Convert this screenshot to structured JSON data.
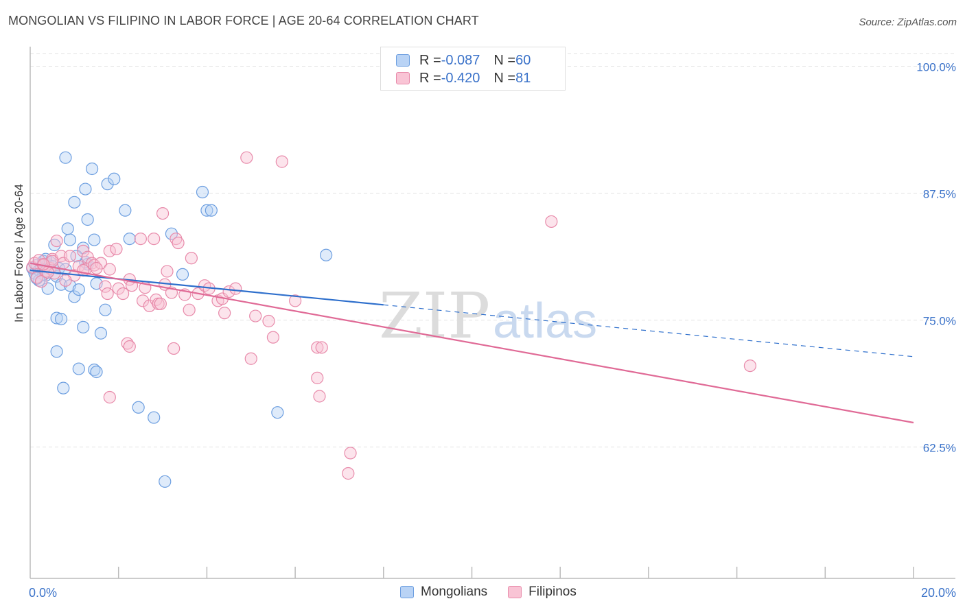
{
  "title": "MONGOLIAN VS FILIPINO IN LABOR FORCE | AGE 20-64 CORRELATION CHART",
  "source": "Source: ZipAtlas.com",
  "legend": {
    "rows": [
      {
        "r_label": "R = ",
        "r_value": "-0.087",
        "n_label": "N = ",
        "n_value": "60"
      },
      {
        "r_label": "R = ",
        "r_value": "-0.420",
        "n_label": "N = ",
        "n_value": "81"
      }
    ]
  },
  "watermark": {
    "zip": "ZIP",
    "atlas": "atlas"
  },
  "colors": {
    "mongolians": "#6c9ee0",
    "filipinos": "#e88aaa",
    "blue_line": "#2e6fcc",
    "pink_line": "#e06a96",
    "tick_text": "#3a72c9"
  },
  "chart_data": {
    "type": "scatter",
    "title": "MONGOLIAN VS FILIPINO IN LABOR FORCE | AGE 20-64 CORRELATION CHART",
    "xlabel": "",
    "ylabel": "In Labor Force | Age 20-64",
    "xlim": [
      0.0,
      20.0
    ],
    "ylim": [
      55.0,
      102.0
    ],
    "x_tick_labels": [
      "0.0%",
      "20.0%"
    ],
    "y_ticks": [
      {
        "value": 100.0,
        "label": "100.0%"
      },
      {
        "value": 87.5,
        "label": "87.5%"
      },
      {
        "value": 75.0,
        "label": "75.0%"
      },
      {
        "value": 62.5,
        "label": "62.5%"
      }
    ],
    "grid": true,
    "legend_position": "bottom-center",
    "series": [
      {
        "name": "Mongolians",
        "color": "#6c9ee0",
        "points": [
          [
            0.05,
            80.1
          ],
          [
            0.1,
            79.6
          ],
          [
            0.15,
            80.4
          ],
          [
            0.2,
            79.9
          ],
          [
            0.25,
            80.2
          ],
          [
            0.3,
            80.8
          ],
          [
            0.35,
            79.4
          ],
          [
            0.4,
            80.5
          ],
          [
            0.45,
            80.7
          ],
          [
            0.3,
            79.5
          ],
          [
            0.2,
            78.9
          ],
          [
            0.5,
            80.3
          ],
          [
            0.6,
            79.3
          ],
          [
            0.7,
            78.5
          ],
          [
            0.65,
            80.1
          ],
          [
            0.4,
            78.1
          ],
          [
            0.9,
            78.4
          ],
          [
            1.0,
            77.3
          ],
          [
            1.1,
            78.0
          ],
          [
            0.8,
            80.0
          ],
          [
            1.3,
            80.5
          ],
          [
            1.5,
            78.6
          ],
          [
            0.55,
            82.4
          ],
          [
            0.9,
            82.9
          ],
          [
            1.2,
            82.1
          ],
          [
            1.45,
            82.9
          ],
          [
            0.85,
            84.0
          ],
          [
            1.3,
            84.9
          ],
          [
            1.0,
            86.6
          ],
          [
            1.25,
            87.9
          ],
          [
            1.4,
            89.9
          ],
          [
            1.75,
            88.4
          ],
          [
            1.9,
            88.9
          ],
          [
            0.8,
            91.0
          ],
          [
            2.15,
            85.8
          ],
          [
            2.25,
            83.0
          ],
          [
            3.2,
            83.5
          ],
          [
            3.45,
            79.5
          ],
          [
            3.9,
            87.6
          ],
          [
            4.0,
            85.8
          ],
          [
            4.1,
            85.8
          ],
          [
            6.7,
            81.4
          ],
          [
            1.25,
            80.7
          ],
          [
            1.7,
            76.0
          ],
          [
            0.6,
            75.2
          ],
          [
            0.7,
            75.1
          ],
          [
            1.2,
            74.3
          ],
          [
            1.6,
            73.7
          ],
          [
            0.6,
            71.9
          ],
          [
            1.1,
            70.2
          ],
          [
            1.45,
            70.1
          ],
          [
            1.5,
            69.9
          ],
          [
            0.75,
            68.3
          ],
          [
            2.45,
            66.4
          ],
          [
            2.8,
            65.4
          ],
          [
            5.6,
            65.9
          ],
          [
            3.05,
            59.1
          ],
          [
            0.35,
            81.0
          ],
          [
            0.15,
            79.1
          ],
          [
            1.05,
            81.3
          ]
        ]
      },
      {
        "name": "Filipinos",
        "color": "#e88aaa",
        "points": [
          [
            0.05,
            80.2
          ],
          [
            0.1,
            80.6
          ],
          [
            0.15,
            79.2
          ],
          [
            0.2,
            80.9
          ],
          [
            0.3,
            80.4
          ],
          [
            0.35,
            79.8
          ],
          [
            0.45,
            80.1
          ],
          [
            0.5,
            81.0
          ],
          [
            0.55,
            79.6
          ],
          [
            0.6,
            82.8
          ],
          [
            0.7,
            81.3
          ],
          [
            0.75,
            80.6
          ],
          [
            0.9,
            81.3
          ],
          [
            1.0,
            79.4
          ],
          [
            1.1,
            80.3
          ],
          [
            1.2,
            81.8
          ],
          [
            1.25,
            80.0
          ],
          [
            1.3,
            81.2
          ],
          [
            1.4,
            80.6
          ],
          [
            1.45,
            80.4
          ],
          [
            1.6,
            80.6
          ],
          [
            1.7,
            78.3
          ],
          [
            1.75,
            77.6
          ],
          [
            1.8,
            81.8
          ],
          [
            1.8,
            80.0
          ],
          [
            1.95,
            82.0
          ],
          [
            2.0,
            78.1
          ],
          [
            2.1,
            77.6
          ],
          [
            2.25,
            79.0
          ],
          [
            2.3,
            78.4
          ],
          [
            2.5,
            83.0
          ],
          [
            2.55,
            76.9
          ],
          [
            2.6,
            78.2
          ],
          [
            2.7,
            76.4
          ],
          [
            2.8,
            83.0
          ],
          [
            2.85,
            77.0
          ],
          [
            2.9,
            76.6
          ],
          [
            2.95,
            76.6
          ],
          [
            3.0,
            85.5
          ],
          [
            3.05,
            78.5
          ],
          [
            3.1,
            79.8
          ],
          [
            3.2,
            77.7
          ],
          [
            3.3,
            83.0
          ],
          [
            3.35,
            82.6
          ],
          [
            3.5,
            77.5
          ],
          [
            3.6,
            76.0
          ],
          [
            3.65,
            81.1
          ],
          [
            3.8,
            77.6
          ],
          [
            3.95,
            78.4
          ],
          [
            4.05,
            78.1
          ],
          [
            4.25,
            76.9
          ],
          [
            4.35,
            77.1
          ],
          [
            4.4,
            75.7
          ],
          [
            4.5,
            77.8
          ],
          [
            4.65,
            78.1
          ],
          [
            4.9,
            91.0
          ],
          [
            5.1,
            75.4
          ],
          [
            5.4,
            74.9
          ],
          [
            5.5,
            73.3
          ],
          [
            5.0,
            71.2
          ],
          [
            5.7,
            90.6
          ],
          [
            6.0,
            76.9
          ],
          [
            6.5,
            69.3
          ],
          [
            6.55,
            67.5
          ],
          [
            6.5,
            72.3
          ],
          [
            6.6,
            72.3
          ],
          [
            7.25,
            61.9
          ],
          [
            7.2,
            59.9
          ],
          [
            11.8,
            84.7
          ],
          [
            16.3,
            70.5
          ],
          [
            1.8,
            67.4
          ],
          [
            2.2,
            72.7
          ],
          [
            2.25,
            72.4
          ],
          [
            3.25,
            72.2
          ],
          [
            0.25,
            78.8
          ],
          [
            0.4,
            79.7
          ],
          [
            0.5,
            80.8
          ],
          [
            0.8,
            78.9
          ],
          [
            1.2,
            79.9
          ],
          [
            1.5,
            80.1
          ],
          [
            0.3,
            80.5
          ]
        ]
      }
    ],
    "trend_lines": [
      {
        "series": "Mongolians",
        "x": [
          0.0,
          20.0
        ],
        "y": [
          79.9,
          71.4
        ],
        "solid_until_x": 8.0
      },
      {
        "series": "Filipinos",
        "x": [
          0.0,
          20.0
        ],
        "y": [
          80.6,
          64.9
        ],
        "solid_until_x": 20.0
      }
    ]
  }
}
